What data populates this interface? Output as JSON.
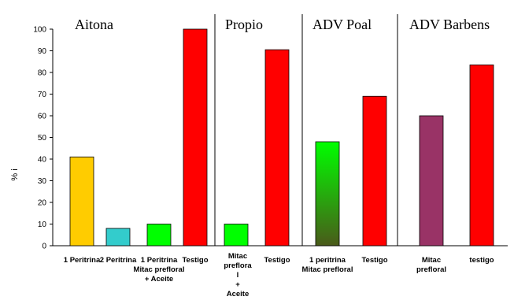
{
  "chart_data": {
    "type": "bar",
    "ylim": [
      0,
      100
    ],
    "yticks": [
      0,
      10,
      20,
      30,
      40,
      50,
      60,
      70,
      80,
      90,
      100
    ],
    "ylabel": "% i",
    "groups": [
      {
        "name": "Aitona",
        "start": 0,
        "end": 3
      },
      {
        "name": "Propio",
        "start": 4,
        "end": 5
      },
      {
        "name": "ADV Poal",
        "start": 6,
        "end": 7
      },
      {
        "name": "ADV Barbens",
        "start": 8,
        "end": 9
      }
    ],
    "bars": [
      {
        "label": [
          "1 Peritrina"
        ],
        "value": 41,
        "color": "#ffcc00"
      },
      {
        "label": [
          "2 Peritrina"
        ],
        "value": 8,
        "color": "#33cccc"
      },
      {
        "label": [
          "1 Peritrina",
          "Mitac prefloral",
          "+ Aceite"
        ],
        "value": 10,
        "color": "#00ff00"
      },
      {
        "label": [
          "Testigo"
        ],
        "value": 100,
        "color": "#ff0000"
      },
      {
        "label": [
          "Mitac",
          "preflora",
          "l",
          "+",
          "Aceite"
        ],
        "value": 10,
        "color": "#00ff00"
      },
      {
        "label": [
          "Testigo"
        ],
        "value": 90.5,
        "color": "#ff0000"
      },
      {
        "label": [
          "1 peritrina",
          "Mitac prefloral"
        ],
        "value": 48,
        "color": "gradient:#00ff00:#4a5a1a"
      },
      {
        "label": [
          "Testigo"
        ],
        "value": 69,
        "color": "#ff0000"
      },
      {
        "label": [
          "Mitac",
          "prefloral"
        ],
        "value": 60,
        "color": "#993366"
      },
      {
        "label": [
          "testigo"
        ],
        "value": 83.5,
        "color": "#ff0000"
      }
    ]
  }
}
